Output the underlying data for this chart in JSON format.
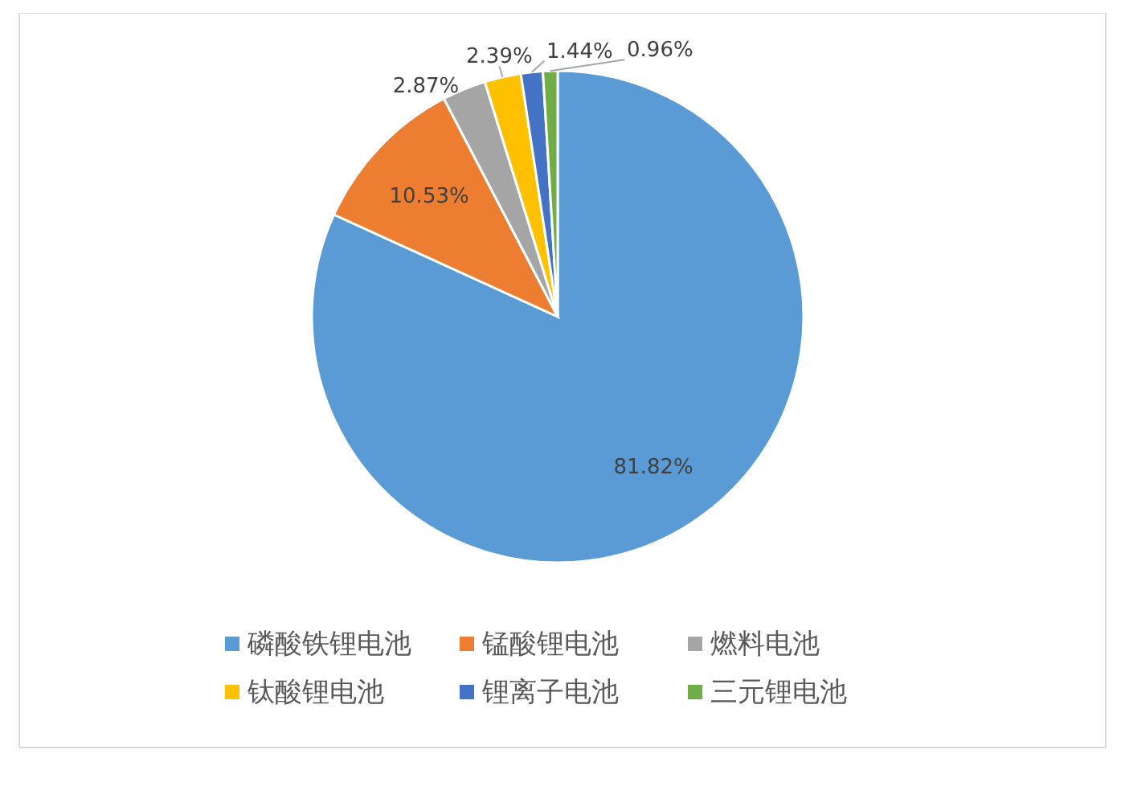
{
  "chart_data": {
    "type": "pie",
    "categories": [
      "磷酸铁锂电池",
      "锰酸锂电池",
      "燃料电池",
      "钛酸锂电池",
      "锂离子电池",
      "三元锂电池"
    ],
    "values": [
      81.82,
      10.53,
      2.87,
      2.39,
      1.44,
      0.96
    ],
    "value_labels": [
      "81.82%",
      "10.53%",
      "2.87%",
      "2.39%",
      "1.44%",
      "0.96%"
    ],
    "colors": [
      "#5b9bd5",
      "#ed7d31",
      "#a5a5a5",
      "#ffc000",
      "#4472c4",
      "#70ad47"
    ],
    "legend": "bottom"
  }
}
